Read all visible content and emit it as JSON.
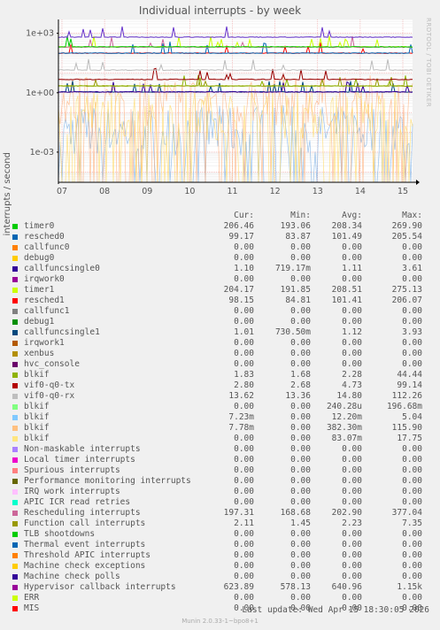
{
  "title": "Individual interrupts - by week",
  "brand": "RRDTOOL / TOBI OETIKER",
  "chart_data": {
    "type": "line",
    "title": "Individual interrupts - by week",
    "ylabel": "interrupts / second",
    "yscale": "log",
    "ylim": [
      3e-05,
      5000
    ],
    "yticks": [
      {
        "label": "1e+03",
        "value": 1000
      },
      {
        "label": "1e+00",
        "value": 1
      },
      {
        "label": "1e-03",
        "value": 0.001
      }
    ],
    "xticks": [
      "07",
      "08",
      "09",
      "10",
      "11",
      "12",
      "13",
      "14",
      "15"
    ],
    "series": [
      {
        "name": "Hypervisor callback interrupts",
        "color": "#6633cc",
        "level": 640
      },
      {
        "name": "timer0",
        "color": "#00cc00",
        "level": 208
      },
      {
        "name": "Rescheduling interrupts",
        "color": "#cc6699",
        "level": 200
      },
      {
        "name": "timer1",
        "color": "#ccff00",
        "level": 208
      },
      {
        "name": "resched0",
        "color": "#0066b3",
        "level": 100
      },
      {
        "name": "resched1",
        "color": "#ff0000",
        "level": 100
      },
      {
        "name": "vif0-q0-rx",
        "color": "#bbbbbb",
        "level": 14
      },
      {
        "name": "vif0-q0-tx",
        "color": "#990000",
        "level": 4.7
      },
      {
        "name": "blkif",
        "color": "#8fb300",
        "level": 2.2
      },
      {
        "name": "Function call interrupts",
        "color": "#999900",
        "level": 2.2
      },
      {
        "name": "callfuncsingle0",
        "color": "#330099",
        "level": 1.1
      },
      {
        "name": "callfuncsingle1",
        "color": "#00487d",
        "level": 1.1
      },
      {
        "name": "blkif (4)",
        "color": "#ffd966",
        "level": 0.08
      },
      {
        "name": "blkif (3)",
        "color": "#ffb380",
        "level": 0.38
      },
      {
        "name": "blkif (2)",
        "color": "#80b3e6",
        "level": 0.012
      }
    ]
  },
  "legend": {
    "headers": {
      "cur": "Cur:",
      "min": "Min:",
      "avg": "Avg:",
      "max": "Max:"
    },
    "rows": [
      {
        "name": "timer0",
        "color": "#00cc00",
        "cur": "206.46",
        "min": "193.06",
        "avg": "208.34",
        "max": "269.90"
      },
      {
        "name": "resched0",
        "color": "#0066b3",
        "cur": "99.17",
        "min": "83.87",
        "avg": "101.49",
        "max": "205.54"
      },
      {
        "name": "callfunc0",
        "color": "#ff8000",
        "cur": "0.00",
        "min": "0.00",
        "avg": "0.00",
        "max": "0.00"
      },
      {
        "name": "debug0",
        "color": "#ffcc00",
        "cur": "0.00",
        "min": "0.00",
        "avg": "0.00",
        "max": "0.00"
      },
      {
        "name": "callfuncsingle0",
        "color": "#330099",
        "cur": "1.10",
        "min": "719.17m",
        "avg": "1.11",
        "max": "3.61"
      },
      {
        "name": "irqwork0",
        "color": "#990099",
        "cur": "0.00",
        "min": "0.00",
        "avg": "0.00",
        "max": "0.00"
      },
      {
        "name": "timer1",
        "color": "#ccff00",
        "cur": "204.17",
        "min": "191.85",
        "avg": "208.51",
        "max": "275.13"
      },
      {
        "name": "resched1",
        "color": "#ff0000",
        "cur": "98.15",
        "min": "84.81",
        "avg": "101.41",
        "max": "206.07"
      },
      {
        "name": "callfunc1",
        "color": "#808080",
        "cur": "0.00",
        "min": "0.00",
        "avg": "0.00",
        "max": "0.00"
      },
      {
        "name": "debug1",
        "color": "#008f00",
        "cur": "0.00",
        "min": "0.00",
        "avg": "0.00",
        "max": "0.00"
      },
      {
        "name": "callfuncsingle1",
        "color": "#00487d",
        "cur": "1.01",
        "min": "730.50m",
        "avg": "1.12",
        "max": "3.93"
      },
      {
        "name": "irqwork1",
        "color": "#b35a00",
        "cur": "0.00",
        "min": "0.00",
        "avg": "0.00",
        "max": "0.00"
      },
      {
        "name": "xenbus",
        "color": "#b38f00",
        "cur": "0.00",
        "min": "0.00",
        "avg": "0.00",
        "max": "0.00"
      },
      {
        "name": "hvc_console",
        "color": "#6b006b",
        "cur": "0.00",
        "min": "0.00",
        "avg": "0.00",
        "max": "0.00"
      },
      {
        "name": "blkif",
        "color": "#8fb300",
        "cur": "1.83",
        "min": "1.68",
        "avg": "2.28",
        "max": "44.44"
      },
      {
        "name": "vif0-q0-tx",
        "color": "#b30000",
        "cur": "2.80",
        "min": "2.68",
        "avg": "4.73",
        "max": "99.14"
      },
      {
        "name": "vif0-q0-rx",
        "color": "#bebebe",
        "cur": "13.62",
        "min": "13.36",
        "avg": "14.80",
        "max": "112.26"
      },
      {
        "name": "blkif",
        "color": "#80ff80",
        "cur": "0.00",
        "min": "0.00",
        "avg": "240.28u",
        "max": "196.68m"
      },
      {
        "name": "blkif",
        "color": "#80c9ff",
        "cur": "7.23m",
        "min": "0.00",
        "avg": "12.20m",
        "max": "5.04"
      },
      {
        "name": "blkif",
        "color": "#ffc080",
        "cur": "7.78m",
        "min": "0.00",
        "avg": "382.30m",
        "max": "115.90"
      },
      {
        "name": "blkif",
        "color": "#ffe680",
        "cur": "0.00",
        "min": "0.00",
        "avg": "83.07m",
        "max": "17.75"
      },
      {
        "name": "Non-maskable interrupts",
        "color": "#aa80ff",
        "cur": "0.00",
        "min": "0.00",
        "avg": "0.00",
        "max": "0.00"
      },
      {
        "name": "Local timer interrupts",
        "color": "#ee00cc",
        "cur": "0.00",
        "min": "0.00",
        "avg": "0.00",
        "max": "0.00"
      },
      {
        "name": "Spurious interrupts",
        "color": "#ff8080",
        "cur": "0.00",
        "min": "0.00",
        "avg": "0.00",
        "max": "0.00"
      },
      {
        "name": "Performance monitoring interrupts",
        "color": "#666600",
        "cur": "0.00",
        "min": "0.00",
        "avg": "0.00",
        "max": "0.00"
      },
      {
        "name": "IRQ work interrupts",
        "color": "#ffbfff",
        "cur": "0.00",
        "min": "0.00",
        "avg": "0.00",
        "max": "0.00"
      },
      {
        "name": "APIC ICR read retries",
        "color": "#00ffcc",
        "cur": "0.00",
        "min": "0.00",
        "avg": "0.00",
        "max": "0.00"
      },
      {
        "name": "Rescheduling interrupts",
        "color": "#cc6699",
        "cur": "197.31",
        "min": "168.68",
        "avg": "202.90",
        "max": "377.04"
      },
      {
        "name": "Function call interrupts",
        "color": "#999900",
        "cur": "2.11",
        "min": "1.45",
        "avg": "2.23",
        "max": "7.35"
      },
      {
        "name": "TLB shootdowns",
        "color": "#00cc00",
        "cur": "0.00",
        "min": "0.00",
        "avg": "0.00",
        "max": "0.00"
      },
      {
        "name": "Thermal event interrupts",
        "color": "#0066b3",
        "cur": "0.00",
        "min": "0.00",
        "avg": "0.00",
        "max": "0.00"
      },
      {
        "name": "Threshold APIC interrupts",
        "color": "#ff8000",
        "cur": "0.00",
        "min": "0.00",
        "avg": "0.00",
        "max": "0.00"
      },
      {
        "name": "Machine check exceptions",
        "color": "#ffcc00",
        "cur": "0.00",
        "min": "0.00",
        "avg": "0.00",
        "max": "0.00"
      },
      {
        "name": "Machine check polls",
        "color": "#330099",
        "cur": "0.00",
        "min": "0.00",
        "avg": "0.00",
        "max": "0.00"
      },
      {
        "name": "Hypervisor callback interrupts",
        "color": "#990099",
        "cur": "623.89",
        "min": "578.13",
        "avg": "640.96",
        "max": "1.15k"
      },
      {
        "name": "ERR",
        "color": "#ccff00",
        "cur": "0.00",
        "min": "0.00",
        "avg": "0.00",
        "max": "0.00"
      },
      {
        "name": "MIS",
        "color": "#ff0000",
        "cur": "0.00",
        "min": "0.00",
        "avg": "0.00",
        "max": "0.00"
      }
    ]
  },
  "last_update": "Last update: Wed Apr 15 18:30:05 2026",
  "footer": "Munin 2.0.33-1~bpo8+1"
}
